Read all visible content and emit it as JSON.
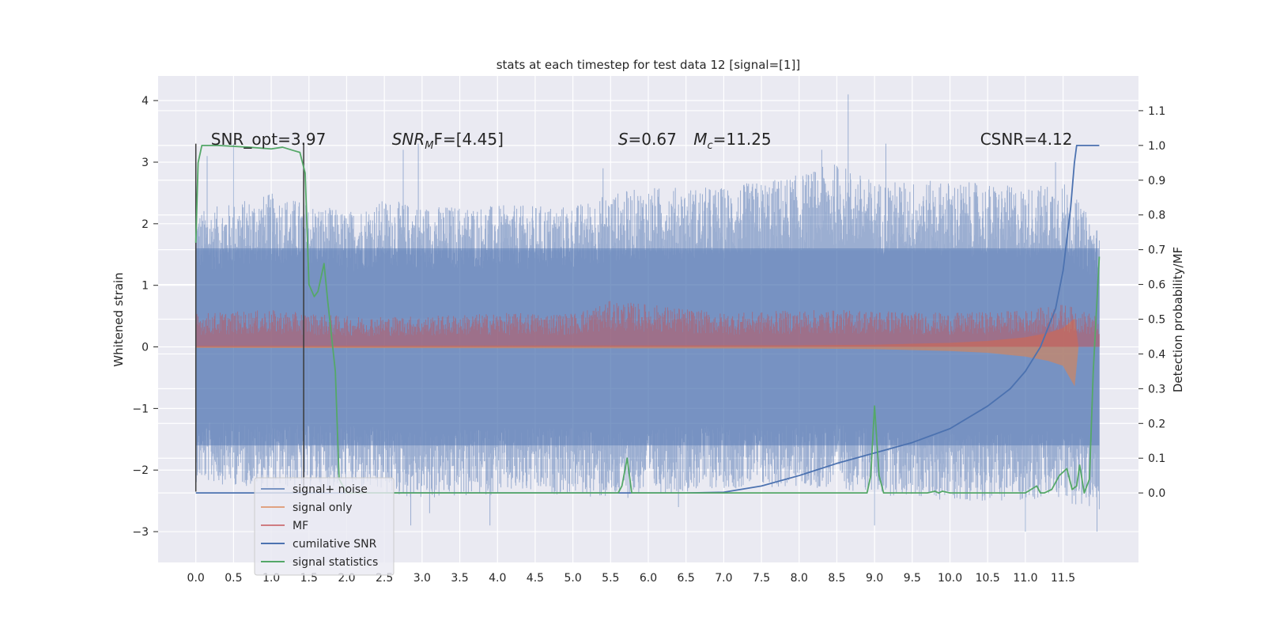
{
  "chart_data": {
    "type": "line",
    "title": "stats at each timestep for test data 12 [signal=[1]]",
    "ylabel": "Whitened strain",
    "y2label": "Detection probability/MF",
    "xlim": [
      -0.5,
      12.5
    ],
    "ylim": [
      -3.5,
      4.4
    ],
    "y2lim": [
      -0.2,
      1.2
    ],
    "xticks": [
      0.0,
      0.5,
      1.0,
      1.5,
      2.0,
      2.5,
      3.0,
      3.5,
      4.0,
      4.5,
      5.0,
      5.5,
      6.0,
      6.5,
      7.0,
      7.5,
      8.0,
      8.5,
      9.0,
      9.5,
      10.0,
      10.5,
      11.0,
      11.5
    ],
    "xtick_labels": [
      "0.0",
      "0.5",
      "1.0",
      "1.5",
      "2.0",
      "2.5",
      "3.0",
      "3.5",
      "4.0",
      "4.5",
      "5.0",
      "5.5",
      "6.0",
      "6.5",
      "7.0",
      "7.5",
      "8.0",
      "8.5",
      "9.0",
      "9.5",
      "10.0",
      "10.5",
      "11.0",
      "11.5"
    ],
    "yticks": [
      -3,
      -2,
      -1,
      0,
      1,
      2,
      3,
      4
    ],
    "ytick_labels": [
      "−3",
      "−2",
      "−1",
      "0",
      "1",
      "2",
      "3",
      "4"
    ],
    "y2ticks": [
      0.0,
      0.1,
      0.2,
      0.3,
      0.4,
      0.5,
      0.6,
      0.7,
      0.8,
      0.9,
      1.0,
      1.1
    ],
    "y2tick_labels": [
      "0.0",
      "0.1",
      "0.2",
      "0.3",
      "0.4",
      "0.5",
      "0.6",
      "0.7",
      "0.8",
      "0.9",
      "1.0",
      "1.1"
    ],
    "grid": true,
    "legend_position": "lower-left",
    "annotations": [
      {
        "id": "snr-opt",
        "text": "SNR_opt=3.97",
        "x": 0.2,
        "y2": 1.0
      },
      {
        "id": "snr-mf",
        "base": "SNR",
        "sub": "M",
        "rest": "F=[4.45]",
        "x": 2.6,
        "y2": 1.0
      },
      {
        "id": "s-val",
        "base": "S",
        "rest": "=0.67",
        "x": 5.6,
        "y2": 1.0
      },
      {
        "id": "mc-val",
        "base": "M",
        "sub": "c",
        "rest": "=11.25",
        "x": 6.6,
        "y2": 1.0
      },
      {
        "id": "csnr",
        "text": "CSNR=4.12",
        "x": 10.4,
        "y2": 1.0
      }
    ],
    "series": [
      {
        "name": "signal+ noise",
        "color": "#4c72b0",
        "opacity": 0.5,
        "axis": "left",
        "x_range": [
          0.0,
          11.98
        ],
        "envelope": {
          "x": [
            0.0,
            1.0,
            2.0,
            2.5,
            3.0,
            4.0,
            5.0,
            5.5,
            6.0,
            7.0,
            8.0,
            8.5,
            9.0,
            10.0,
            11.0,
            11.5,
            11.98
          ],
          "upper": [
            2.2,
            2.5,
            2.2,
            2.4,
            2.3,
            2.3,
            2.3,
            2.5,
            2.6,
            2.6,
            2.8,
            3.0,
            2.7,
            2.7,
            2.6,
            2.7,
            1.9
          ],
          "lower": [
            -2.2,
            -2.3,
            -2.3,
            -2.4,
            -2.5,
            -2.4,
            -2.4,
            -2.5,
            -2.4,
            -2.3,
            -2.3,
            -2.3,
            -2.4,
            -2.5,
            -2.5,
            -2.5,
            -2.7
          ]
        },
        "spikes": [
          [
            0.5,
            3.3
          ],
          [
            2.95,
            3.3
          ],
          [
            2.75,
            3.2
          ],
          [
            8.65,
            4.1
          ],
          [
            9.15,
            3.3
          ],
          [
            8.3,
            3.2
          ],
          [
            5.4,
            2.9
          ],
          [
            11.4,
            3.0
          ],
          [
            0.15,
            3.1
          ],
          [
            2.85,
            -2.9
          ],
          [
            3.9,
            -2.9
          ],
          [
            9.0,
            -2.9
          ],
          [
            11.0,
            -3.0
          ],
          [
            11.95,
            -3.0
          ],
          [
            3.1,
            -2.7
          ],
          [
            6.4,
            -2.6
          ]
        ]
      },
      {
        "name": "signal only",
        "color": "#dd8452",
        "opacity": 0.5,
        "axis": "left",
        "envelope": {
          "x": [
            0.0,
            8.0,
            9.0,
            10.0,
            10.5,
            11.0,
            11.3,
            11.5,
            11.65,
            11.7
          ],
          "upper": [
            0.01,
            0.02,
            0.03,
            0.06,
            0.09,
            0.15,
            0.22,
            0.3,
            0.45,
            0.0
          ],
          "lower": [
            -0.01,
            -0.02,
            -0.03,
            -0.06,
            -0.09,
            -0.15,
            -0.22,
            -0.3,
            -0.62,
            0.0
          ]
        }
      },
      {
        "name": "MF",
        "color": "#c44e52",
        "opacity": 0.5,
        "axis": "left",
        "x_range": [
          0.0,
          11.98
        ],
        "envelope": {
          "x": [
            0.0,
            1.0,
            2.0,
            3.0,
            4.0,
            5.0,
            5.5,
            6.0,
            7.0,
            8.0,
            9.0,
            10.0,
            11.0,
            11.5,
            11.98
          ],
          "upper": [
            0.55,
            0.6,
            0.5,
            0.5,
            0.55,
            0.55,
            0.75,
            0.7,
            0.55,
            0.6,
            0.6,
            0.55,
            0.6,
            0.7,
            0.5
          ],
          "lower": [
            0.0,
            0.0,
            0.0,
            0.0,
            0.0,
            0.0,
            0.0,
            0.0,
            0.0,
            0.0,
            0.0,
            0.0,
            0.0,
            0.0,
            0.0
          ]
        }
      },
      {
        "name": "cumilative SNR",
        "color": "#4c72b0",
        "opacity": 1.0,
        "axis": "right",
        "x": [
          0.0,
          6.5,
          7.0,
          7.5,
          8.0,
          8.5,
          9.0,
          9.5,
          10.0,
          10.5,
          10.8,
          11.0,
          11.2,
          11.4,
          11.5,
          11.6,
          11.65,
          11.68,
          11.98
        ],
        "values": [
          0.0,
          0.0,
          0.002,
          0.02,
          0.05,
          0.085,
          0.115,
          0.145,
          0.185,
          0.25,
          0.3,
          0.35,
          0.42,
          0.53,
          0.64,
          0.82,
          0.95,
          1.0,
          1.0
        ]
      },
      {
        "name": "signal statistics",
        "color": "#55a868",
        "opacity": 1.0,
        "axis": "right",
        "x": [
          0.0,
          0.03,
          0.08,
          0.1,
          0.3,
          0.7,
          1.0,
          1.15,
          1.3,
          1.38,
          1.45,
          1.5,
          1.57,
          1.62,
          1.7,
          1.75,
          1.85,
          1.9,
          2.0,
          5.6,
          5.65,
          5.72,
          5.78,
          5.85,
          8.9,
          8.95,
          9.0,
          9.06,
          9.12,
          9.7,
          9.8,
          9.85,
          9.9,
          10.0,
          10.5,
          11.0,
          11.15,
          11.2,
          11.25,
          11.35,
          11.45,
          11.55,
          11.62,
          11.68,
          11.72,
          11.78,
          11.85,
          11.9,
          11.98
        ],
        "values": [
          0.72,
          0.95,
          1.0,
          1.0,
          1.0,
          0.995,
          0.99,
          0.995,
          0.985,
          0.98,
          0.92,
          0.6,
          0.565,
          0.58,
          0.66,
          0.55,
          0.35,
          0.04,
          0.0,
          0.0,
          0.02,
          0.1,
          0.0,
          0.0,
          0.0,
          0.05,
          0.25,
          0.05,
          0.0,
          0.0,
          0.005,
          0.0,
          0.005,
          0.0,
          0.0,
          0.0,
          0.02,
          0.0,
          0.0,
          0.01,
          0.05,
          0.07,
          0.01,
          0.02,
          0.08,
          0.0,
          0.04,
          0.35,
          0.68
        ]
      }
    ],
    "vlines": [
      {
        "x": 0.0,
        "y_from": -2.35,
        "y_to": 3.3,
        "color": "#3a3a3a"
      },
      {
        "x": 1.43,
        "y_from": -2.35,
        "y_to": 3.3,
        "color": "#3a3a3a"
      }
    ]
  },
  "colors": {
    "plot_background": "#eaeaf2",
    "grid": "#ffffff",
    "text": "#262626"
  }
}
